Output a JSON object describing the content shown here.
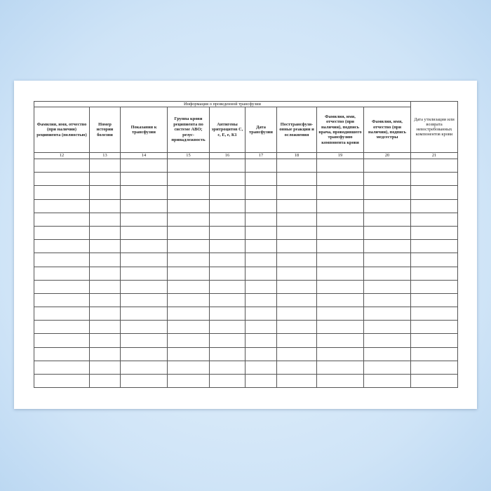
{
  "table": {
    "caption": "Информация о проведенной трансфузии",
    "columns": [
      "Фамилия, имя, отчество (при наличии) реципиента (полностью)",
      "Номер истории болезни",
      "Показания к трансфузии",
      "Группа крови реципиента по системе АВО; резус-принадлежность",
      "Антигены эритроцитов С, с, Е, е, К1",
      "Дата трансфузии",
      "Посттрансфузи-онные реакции и осложнения",
      "Фамилия, имя, отчество (при наличии), подпись врача, проводившего трансфузию компонента крови",
      "Фамилия, имя, отчество (при наличии), подпись медсестры",
      "Дата утилизации или возврата невостребованных компонентов крови"
    ],
    "numbers": [
      12,
      13,
      14,
      15,
      16,
      17,
      18,
      19,
      20,
      21
    ]
  }
}
